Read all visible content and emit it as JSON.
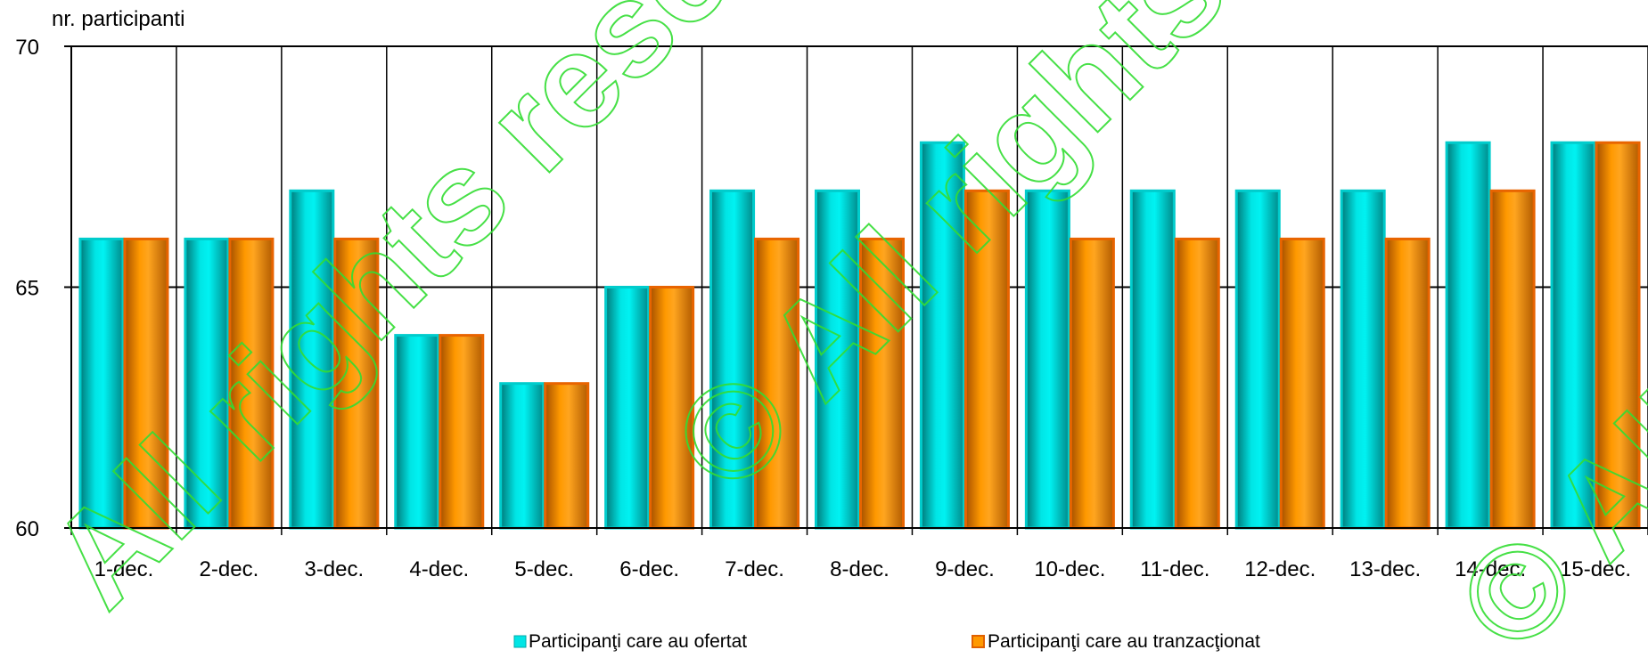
{
  "chart_data": {
    "type": "bar",
    "ylabel": "nr. participanti",
    "ylim": [
      60,
      70
    ],
    "yticks": [
      "60",
      "65",
      "70"
    ],
    "grid": true,
    "legend_position": "bottom",
    "categories": [
      "1-dec.",
      "2-dec.",
      "3-dec.",
      "4-dec.",
      "5-dec.",
      "6-dec.",
      "7-dec.",
      "8-dec.",
      "9-dec.",
      "10-dec.",
      "11-dec.",
      "12-dec.",
      "13-dec.",
      "14-dec.",
      "15-dec."
    ],
    "series": [
      {
        "name": "Participanţi care au ofertat",
        "color": "#00e5e5",
        "values": [
          66,
          66,
          67,
          64,
          63,
          65,
          67,
          67,
          68,
          67,
          67,
          67,
          67,
          68,
          68
        ]
      },
      {
        "name": "Participanţi care au tranzacţionat",
        "color": "#ff9900",
        "values": [
          66,
          66,
          66,
          64,
          63,
          65,
          66,
          66,
          67,
          66,
          66,
          66,
          66,
          67,
          68
        ]
      }
    ]
  }
}
